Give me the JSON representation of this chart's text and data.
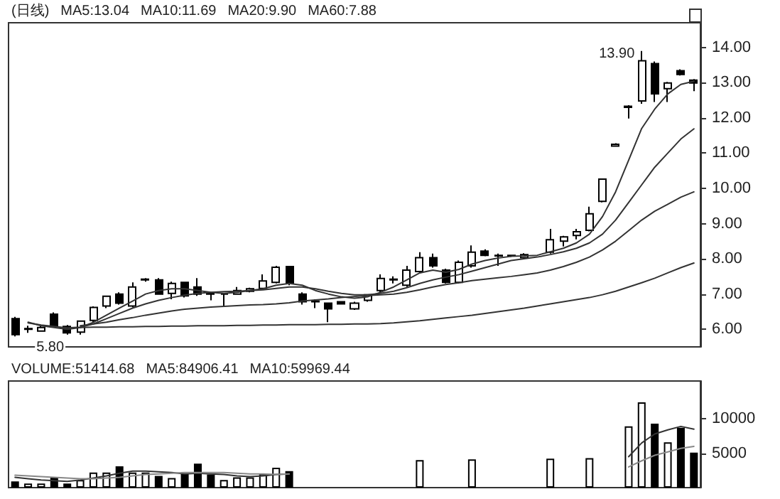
{
  "chart_data": [
    {
      "type": "candlestick",
      "title": "(日线)",
      "annotations": [
        "MA5:13.04",
        "MA10:11.69",
        "MA20:9.90",
        "MA60:7.88",
        "13.90",
        "5.80"
      ],
      "categories": [
        null,
        null,
        null,
        null,
        null,
        null,
        null,
        null,
        null,
        null,
        null,
        null,
        null,
        null,
        null,
        null,
        null,
        null,
        null,
        null,
        null,
        null,
        null,
        null,
        null,
        null,
        null,
        null,
        null,
        null,
        null,
        null,
        null,
        null,
        null,
        null,
        null,
        null,
        null,
        null,
        null,
        null,
        null,
        null,
        null,
        null,
        null,
        null,
        null,
        null,
        null,
        null,
        null
      ],
      "ohlc": [
        [
          6.3,
          6.35,
          5.8,
          5.85
        ],
        [
          6.0,
          6.1,
          5.9,
          6.02
        ],
        [
          5.95,
          6.1,
          5.93,
          6.05
        ],
        [
          6.43,
          6.48,
          6.05,
          6.08
        ],
        [
          6.08,
          6.12,
          5.85,
          5.9
        ],
        [
          5.92,
          6.25,
          5.85,
          6.23
        ],
        [
          6.25,
          6.65,
          6.2,
          6.62
        ],
        [
          6.66,
          6.96,
          6.6,
          6.94
        ],
        [
          7.0,
          7.05,
          6.7,
          6.74
        ],
        [
          6.66,
          7.33,
          6.62,
          7.2
        ],
        [
          7.4,
          7.45,
          7.35,
          7.42
        ],
        [
          7.4,
          7.45,
          6.98,
          7.0
        ],
        [
          7.02,
          7.35,
          6.85,
          7.3
        ],
        [
          7.33,
          7.35,
          6.9,
          6.95
        ],
        [
          7.2,
          7.45,
          6.95,
          7.0
        ],
        [
          7.0,
          7.05,
          6.82,
          7.02
        ],
        [
          7.0,
          7.02,
          6.65,
          7.0
        ],
        [
          7.0,
          7.2,
          6.98,
          7.1
        ],
        [
          7.08,
          7.18,
          7.05,
          7.15
        ],
        [
          7.16,
          7.56,
          7.12,
          7.37
        ],
        [
          7.33,
          7.8,
          7.3,
          7.76
        ],
        [
          7.78,
          7.8,
          7.25,
          7.3
        ],
        [
          7.0,
          7.05,
          6.7,
          6.78
        ],
        [
          6.78,
          6.85,
          6.6,
          6.8
        ],
        [
          6.74,
          6.76,
          6.2,
          6.58
        ],
        [
          6.78,
          6.8,
          6.7,
          6.72
        ],
        [
          6.58,
          6.78,
          6.55,
          6.74
        ],
        [
          6.82,
          7.0,
          6.78,
          6.98
        ],
        [
          7.1,
          7.56,
          7.05,
          7.44
        ],
        [
          7.4,
          7.5,
          7.3,
          7.42
        ],
        [
          7.25,
          7.8,
          7.2,
          7.68
        ],
        [
          7.64,
          8.19,
          7.6,
          8.03
        ],
        [
          8.03,
          8.15,
          7.75,
          7.8
        ],
        [
          7.68,
          7.72,
          7.3,
          7.33
        ],
        [
          7.33,
          7.95,
          7.3,
          7.9
        ],
        [
          7.8,
          8.38,
          7.75,
          8.19
        ],
        [
          8.22,
          8.27,
          8.07,
          8.1
        ],
        [
          8.1,
          8.15,
          7.8,
          8.08
        ],
        [
          8.08,
          8.12,
          8.05,
          8.1
        ],
        [
          8.03,
          8.16,
          8.0,
          8.12
        ],
        null,
        [
          8.19,
          8.85,
          8.15,
          8.54
        ],
        [
          8.5,
          8.65,
          8.35,
          8.62
        ],
        [
          8.66,
          8.85,
          8.55,
          8.77
        ],
        [
          8.81,
          9.48,
          8.78,
          9.28
        ],
        [
          9.63,
          10.28,
          9.6,
          10.26
        ],
        [
          11.2,
          11.28,
          11.2,
          11.25
        ],
        [
          12.3,
          12.36,
          11.98,
          12.33
        ],
        [
          12.48,
          13.9,
          12.4,
          13.62
        ],
        [
          13.54,
          13.6,
          12.45,
          12.68
        ],
        [
          12.83,
          13.02,
          12.45,
          12.99
        ],
        [
          13.34,
          13.38,
          13.2,
          13.23
        ],
        [
          13.07,
          13.1,
          12.76,
          12.99
        ]
      ],
      "series": [
        {
          "type": "line",
          "color": "#333333",
          "values": [
            null,
            6.2,
            6.1,
            6.05,
            6.0,
            6.05,
            6.2,
            6.4,
            6.6,
            6.8,
            7.0,
            7.1,
            7.15,
            7.15,
            7.1,
            7.05,
            7.02,
            7.05,
            7.1,
            7.15,
            7.25,
            7.3,
            7.25,
            7.1,
            7.0,
            6.92,
            6.88,
            6.92,
            7.05,
            7.2,
            7.4,
            7.6,
            7.68,
            7.62,
            7.7,
            7.85,
            7.95,
            8.02,
            8.07,
            8.08,
            8.1,
            8.2,
            8.3,
            8.45,
            8.7,
            9.2,
            9.9,
            10.8,
            11.7,
            12.25,
            12.68,
            12.95,
            13.04
          ]
        },
        {
          "type": "line",
          "color": "#333333",
          "values": [
            null,
            6.18,
            6.12,
            6.08,
            6.04,
            6.06,
            6.15,
            6.3,
            6.45,
            6.6,
            6.72,
            6.82,
            6.9,
            6.97,
            7.02,
            7.05,
            7.07,
            7.08,
            7.1,
            7.12,
            7.16,
            7.2,
            7.2,
            7.15,
            7.08,
            7.02,
            6.98,
            6.98,
            7.02,
            7.08,
            7.18,
            7.3,
            7.4,
            7.48,
            7.55,
            7.65,
            7.75,
            7.85,
            7.95,
            8.0,
            8.05,
            8.12,
            8.2,
            8.3,
            8.45,
            8.7,
            9.1,
            9.6,
            10.1,
            10.6,
            11.0,
            11.4,
            11.69
          ]
        },
        {
          "type": "line",
          "color": "#333333",
          "values": [
            null,
            null,
            null,
            null,
            null,
            6.1,
            6.15,
            6.2,
            6.27,
            6.33,
            6.4,
            6.46,
            6.52,
            6.57,
            6.6,
            6.63,
            6.65,
            6.67,
            6.69,
            6.7,
            6.72,
            6.75,
            6.8,
            6.83,
            6.86,
            6.9,
            6.93,
            6.96,
            6.98,
            7.0,
            7.05,
            7.12,
            7.2,
            7.27,
            7.32,
            7.38,
            7.42,
            7.46,
            7.5,
            7.55,
            7.6,
            7.68,
            7.78,
            7.9,
            8.05,
            8.25,
            8.5,
            8.8,
            9.1,
            9.35,
            9.55,
            9.75,
            9.9
          ]
        },
        {
          "type": "line",
          "color": "#333333",
          "values": [
            null,
            null,
            null,
            null,
            null,
            6.05,
            6.06,
            6.06,
            6.07,
            6.07,
            6.08,
            6.08,
            6.09,
            6.09,
            6.1,
            6.1,
            6.1,
            6.11,
            6.11,
            6.12,
            6.12,
            6.13,
            6.13,
            6.13,
            6.14,
            6.14,
            6.15,
            6.15,
            6.16,
            6.18,
            6.21,
            6.24,
            6.28,
            6.32,
            6.36,
            6.4,
            6.45,
            6.5,
            6.55,
            6.6,
            6.66,
            6.72,
            6.78,
            6.84,
            6.9,
            6.98,
            7.08,
            7.2,
            7.32,
            7.45,
            7.6,
            7.75,
            7.88
          ]
        }
      ],
      "ylim": [
        5.5,
        14.7
      ],
      "yticks": [
        {
          "value": 6,
          "label": "6.00"
        },
        {
          "value": 7,
          "label": "7.00"
        },
        {
          "value": 8,
          "label": "8.00"
        },
        {
          "value": 9,
          "label": "9.00"
        },
        {
          "value": 10,
          "label": "10.00"
        },
        {
          "value": 11,
          "label": "11.00"
        },
        {
          "value": 12,
          "label": "12.00"
        },
        {
          "value": 13,
          "label": "13.00"
        },
        {
          "value": 14,
          "label": "14.00"
        }
      ],
      "grid": false
    },
    {
      "type": "bar",
      "title": "VOLUME:51414.68",
      "annotations": [
        "MA5:84906.41",
        "MA10:59969.44"
      ],
      "categories": [
        null,
        null,
        null,
        null,
        null,
        null,
        null,
        null,
        null,
        null,
        null,
        null,
        null,
        null,
        null,
        null,
        null,
        null,
        null,
        null,
        null,
        null,
        null,
        null,
        null,
        null,
        null,
        null,
        null,
        null,
        null,
        null,
        null,
        null,
        null,
        null,
        null,
        null,
        null,
        null,
        null,
        null,
        null,
        null,
        null,
        null,
        null,
        null,
        null,
        null,
        null,
        null,
        null
      ],
      "series": [
        {
          "type": "bar",
          "values": [
            900,
            600,
            600,
            1500,
            600,
            1100,
            2200,
            2200,
            3100,
            2200,
            2200,
            1700,
            1400,
            2000,
            3500,
            1900,
            1100,
            1500,
            1500,
            2000,
            2900,
            2400,
            null,
            null,
            null,
            null,
            null,
            null,
            null,
            null,
            null,
            4000,
            null,
            null,
            null,
            4100,
            null,
            null,
            null,
            null,
            null,
            4200,
            null,
            null,
            4300,
            null,
            null,
            8900,
            12400,
            9300,
            6600,
            8700,
            5100
          ],
          "colors": [
            "#000000",
            "#ffffff",
            "#ffffff",
            "#000000",
            "#000000",
            "#ffffff",
            "#ffffff",
            "#ffffff",
            "#000000",
            "#ffffff",
            "#ffffff",
            "#000000",
            "#ffffff",
            "#000000",
            "#000000",
            "#000000",
            "#ffffff",
            "#ffffff",
            "#ffffff",
            "#ffffff",
            "#ffffff",
            "#000000",
            "#000000",
            "#000000",
            "#000000",
            "#000000",
            "#ffffff",
            "#ffffff",
            "#ffffff",
            "#ffffff",
            "#ffffff",
            "#ffffff",
            "#000000",
            "#000000",
            "#ffffff",
            "#ffffff",
            "#000000",
            "#000000",
            "#ffffff",
            "#ffffff",
            "#ffffff",
            "#ffffff",
            "#ffffff",
            "#ffffff",
            "#ffffff",
            "#ffffff",
            "#ffffff",
            "#ffffff",
            "#ffffff",
            "#000000",
            "#ffffff",
            "#000000",
            "#000000"
          ]
        },
        {
          "type": "line",
          "color": "#333333",
          "values": [
            1500,
            1300,
            1100,
            1000,
            900,
            1100,
            1400,
            1700,
            2100,
            2400,
            2400,
            2300,
            2200,
            2000,
            2100,
            2000,
            1900,
            1700,
            1600,
            1700,
            1900,
            2000,
            null,
            null,
            null,
            null,
            null,
            null,
            null,
            null,
            null,
            null,
            null,
            null,
            null,
            null,
            null,
            null,
            null,
            null,
            null,
            null,
            null,
            null,
            null,
            null,
            null,
            4500,
            6500,
            7800,
            8400,
            8900,
            8500
          ]
        },
        {
          "type": "line",
          "color": "#888888",
          "values": [
            1800,
            1700,
            1600,
            1500,
            1400,
            1300,
            1300,
            1400,
            1500,
            1700,
            1900,
            2000,
            2100,
            2200,
            2200,
            2200,
            2200,
            2100,
            2000,
            2000,
            1900,
            2000,
            null,
            null,
            null,
            null,
            null,
            null,
            null,
            null,
            null,
            null,
            null,
            null,
            null,
            null,
            null,
            null,
            null,
            null,
            null,
            null,
            null,
            null,
            null,
            null,
            null,
            3000,
            3900,
            4700,
            5200,
            5700,
            6000
          ]
        }
      ],
      "ylim": [
        0,
        15500
      ],
      "yticks": [
        5000,
        10000
      ],
      "grid": false
    }
  ]
}
